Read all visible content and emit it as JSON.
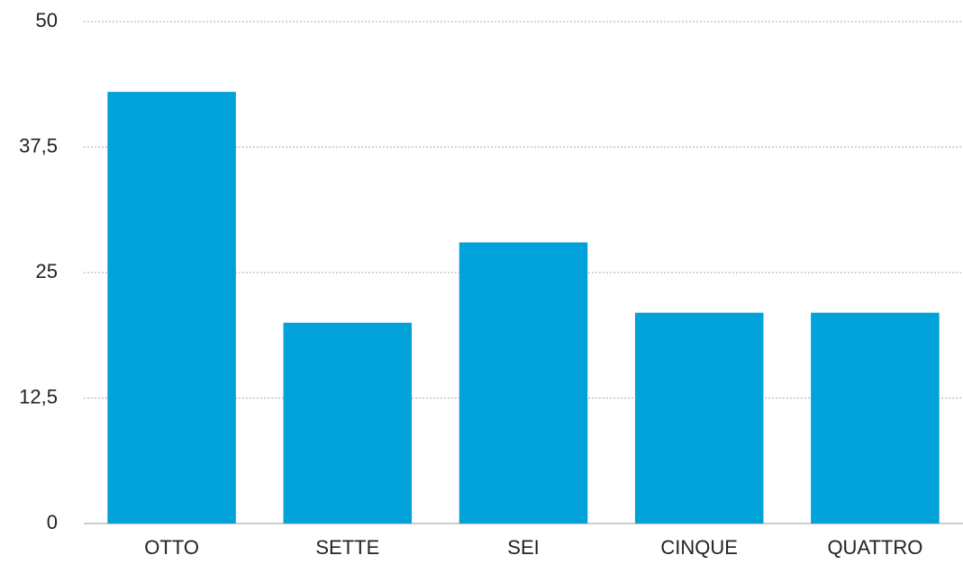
{
  "chart_data": {
    "type": "bar",
    "categories": [
      "OTTO",
      "SETTE",
      "SEI",
      "CINQUE",
      "QUATTRO"
    ],
    "values": [
      43,
      20,
      28,
      21,
      21
    ],
    "color": "#00a2d9",
    "ylim": [
      0,
      50
    ],
    "yticks": [
      0,
      {
        "value": 12.5,
        "label": "12,5"
      },
      25,
      {
        "value": 37.5,
        "label": "37,5"
      },
      50
    ],
    "grid": true
  }
}
